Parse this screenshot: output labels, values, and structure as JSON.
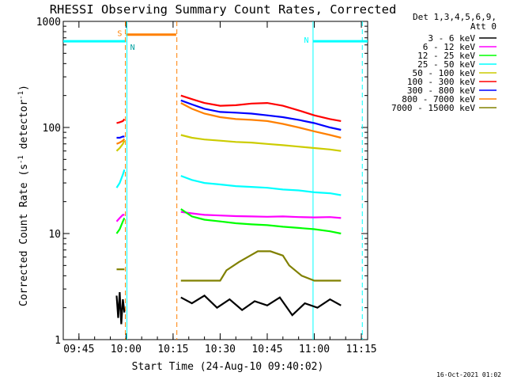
{
  "chart_data": {
    "type": "line",
    "title": "RHESSI Observing Summary Count Rates, Corrected",
    "xlabel": "Start Time (24-Aug-10 09:40:02)",
    "ylabel": "Corrected Count Rate (s⁻¹ detector⁻¹)",
    "ylabel_parts": {
      "main": "Corrected Count Rate (s",
      "sup1": "-1",
      "mid": " detector",
      "sup2": "-1",
      "end": ")"
    },
    "x_unit": "minutes after 09:40:02",
    "xlim": [
      0,
      97
    ],
    "ylim": [
      1,
      1000
    ],
    "yscale": "log",
    "x_ticks": [
      {
        "value": 5,
        "label": "09:45"
      },
      {
        "value": 20,
        "label": "10:00"
      },
      {
        "value": 35,
        "label": "10:15"
      },
      {
        "value": 50,
        "label": "10:30"
      },
      {
        "value": 65,
        "label": "10:45"
      },
      {
        "value": 80,
        "label": "11:00"
      },
      {
        "value": 95,
        "label": "11:15"
      }
    ],
    "y_ticks": [
      {
        "value": 1,
        "label": "1"
      },
      {
        "value": 10,
        "label": "10"
      },
      {
        "value": 100,
        "label": "100"
      },
      {
        "value": 1000,
        "label": "1000"
      }
    ],
    "legend_header": [
      "Det 1,3,4,5,6,9,",
      "Att 0"
    ],
    "legend_position": "right",
    "series": [
      {
        "name": "3 - 6 keV",
        "color": "#000000",
        "segments": [
          {
            "x": [
              17,
              17.5,
              18,
              18.5,
              19,
              19.5
            ],
            "y": [
              2.6,
              1.6,
              2.8,
              1.4,
              2.4,
              1.8
            ]
          },
          {
            "x": [
              37.5,
              41,
              45,
              49,
              53,
              57,
              61,
              65,
              69,
              73,
              77,
              81,
              85,
              88.5
            ],
            "y": [
              2.5,
              2.2,
              2.6,
              2.0,
              2.4,
              1.9,
              2.3,
              2.1,
              2.5,
              1.7,
              2.2,
              2.0,
              2.4,
              2.1
            ]
          }
        ]
      },
      {
        "name": "6 - 12 keV",
        "color": "#ff00ff",
        "segments": [
          {
            "x": [
              17,
              18,
              19,
              19.5
            ],
            "y": [
              13,
              14,
              15,
              15
            ]
          },
          {
            "x": [
              37.5,
              41,
              45,
              50,
              55,
              60,
              65,
              70,
              75,
              80,
              85,
              88.5
            ],
            "y": [
              16,
              15.5,
              15,
              14.8,
              14.6,
              14.5,
              14.4,
              14.5,
              14.3,
              14.2,
              14.3,
              14
            ]
          }
        ]
      },
      {
        "name": "12 - 25 keV",
        "color": "#00ff00",
        "segments": [
          {
            "x": [
              17,
              18,
              19,
              19.5
            ],
            "y": [
              10,
              11,
              13,
              14
            ]
          },
          {
            "x": [
              37.5,
              41,
              45,
              50,
              55,
              60,
              65,
              70,
              75,
              80,
              85,
              88.5
            ],
            "y": [
              17,
              14.5,
              13.5,
              13,
              12.5,
              12.2,
              12,
              11.6,
              11.3,
              11,
              10.5,
              10
            ]
          }
        ]
      },
      {
        "name": "25 - 50 keV",
        "color": "#00ffff",
        "segments": [
          {
            "x": [
              17,
              18,
              19,
              19.5
            ],
            "y": [
              27,
              30,
              36,
              40
            ]
          },
          {
            "x": [
              37.5,
              41,
              45,
              50,
              55,
              60,
              65,
              70,
              75,
              80,
              85,
              88.5
            ],
            "y": [
              35,
              32,
              30,
              29,
              28,
              27.5,
              27,
              26,
              25.5,
              24.5,
              24,
              23
            ]
          }
        ]
      },
      {
        "name": "50 - 100 keV",
        "color": "#cccc00",
        "segments": [
          {
            "x": [
              17,
              18,
              19,
              19.5
            ],
            "y": [
              60,
              64,
              70,
              75
            ]
          },
          {
            "x": [
              37.5,
              41,
              45,
              50,
              55,
              60,
              65,
              70,
              75,
              80,
              85,
              88.5
            ],
            "y": [
              85,
              80,
              77,
              75,
              73,
              72,
              70,
              68,
              66,
              64,
              62,
              60
            ]
          }
        ]
      },
      {
        "name": "100 - 300 keV",
        "color": "#ff0000",
        "segments": [
          {
            "x": [
              17,
              18,
              19,
              19.5
            ],
            "y": [
              110,
              112,
              115,
              120
            ]
          },
          {
            "x": [
              37.5,
              41,
              45,
              50,
              55,
              60,
              65,
              70,
              75,
              80,
              85,
              88.5
            ],
            "y": [
              200,
              185,
              170,
              160,
              162,
              168,
              170,
              160,
              145,
              130,
              120,
              115
            ]
          }
        ]
      },
      {
        "name": "300 - 800 keV",
        "color": "#0000ff",
        "segments": [
          {
            "x": [
              17,
              18,
              19,
              19.5
            ],
            "y": [
              80,
              80,
              82,
              82
            ]
          },
          {
            "x": [
              37.5,
              41,
              45,
              50,
              55,
              60,
              65,
              70,
              75,
              80,
              85,
              88.5
            ],
            "y": [
              180,
              165,
              150,
              140,
              138,
              135,
              130,
              125,
              118,
              110,
              100,
              95
            ]
          }
        ]
      },
      {
        "name": "800 - 7000 keV",
        "color": "#ff8000",
        "segments": [
          {
            "x": [
              17,
              18,
              19,
              19.5
            ],
            "y": [
              70,
              72,
              75,
              78
            ]
          },
          {
            "x": [
              37.5,
              41,
              45,
              50,
              55,
              60,
              65,
              70,
              75,
              80,
              85,
              88.5
            ],
            "y": [
              170,
              150,
              135,
              125,
              120,
              118,
              115,
              108,
              100,
              92,
              85,
              80
            ]
          }
        ]
      },
      {
        "name": "7000 - 15000 keV",
        "color": "#808000",
        "segments": [
          {
            "x": [
              17,
              18,
              19,
              19.5
            ],
            "y": [
              4.6,
              4.6,
              4.6,
              4.6
            ]
          },
          {
            "x": [
              37.5,
              45,
              50,
              52,
              56,
              60,
              62,
              66,
              70,
              72,
              76,
              80,
              85,
              88.5
            ],
            "y": [
              3.6,
              3.6,
              3.6,
              4.5,
              5.4,
              6.3,
              6.8,
              6.8,
              6.2,
              5,
              4,
              3.6,
              3.6,
              3.6
            ]
          }
        ]
      }
    ],
    "annotations": [
      {
        "type": "bar",
        "label": "",
        "color": "#00ffff",
        "x0": 0,
        "x1": 20,
        "y": 650
      },
      {
        "type": "bar",
        "label": "S",
        "color": "#ff8000",
        "x0": 20,
        "x1": 36,
        "y": 750
      },
      {
        "type": "bar",
        "label": "N",
        "color": "#00ffff",
        "x0": 79.5,
        "x1": 97,
        "y": 650
      },
      {
        "type": "vline",
        "color": "#00ffff",
        "x": 20.3,
        "style": "solid"
      },
      {
        "type": "vline",
        "color": "#ff8000",
        "x": 19.8,
        "style": "dashed"
      },
      {
        "type": "vline",
        "color": "#ff8000",
        "x": 36.2,
        "style": "dashed"
      },
      {
        "type": "vline",
        "color": "#00ffff",
        "x": 79.6,
        "style": "solid"
      },
      {
        "type": "vline",
        "color": "#00ffff",
        "x": 95.3,
        "style": "dashed"
      }
    ],
    "annotation_labels": {
      "s": "S",
      "n": "N"
    },
    "grid": false
  },
  "footer": {
    "date_stamp": "16-Oct-2021 01:02"
  }
}
